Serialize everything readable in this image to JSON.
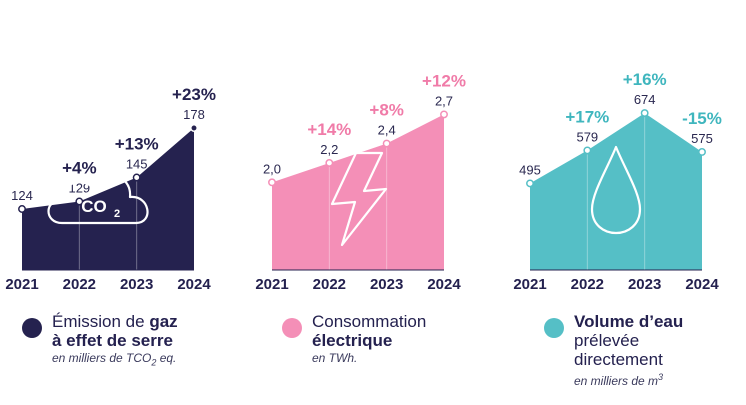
{
  "chart_data": [
    {
      "type": "area",
      "x": [
        "2021",
        "2022",
        "2023",
        "2024"
      ],
      "values": [
        124,
        129,
        145,
        178
      ],
      "value_labels": [
        "124",
        "129",
        "145",
        "178"
      ],
      "changes": [
        "",
        "+4%",
        "+13%",
        "+23%"
      ],
      "color": "#25224f",
      "change_color": "#25224f",
      "icon": "co2-cloud-icon",
      "icon_text": "CO2",
      "legend": {
        "pre": "Émission de ",
        "bold1": "gaz",
        "bold2": "à effet de serre",
        "unit_pre": "en milliers de TCO",
        "unit_sub": "2",
        "unit_post": " eq."
      }
    },
    {
      "type": "area",
      "x": [
        "2021",
        "2022",
        "2023",
        "2024"
      ],
      "values": [
        2.0,
        2.2,
        2.4,
        2.7
      ],
      "value_labels": [
        "2,0",
        "2,2",
        "2,4",
        "2,7"
      ],
      "changes": [
        "",
        "+14%",
        "+8%",
        "+12%"
      ],
      "color": "#f48fb7",
      "change_color": "#f07ba8",
      "icon": "lightning-bolt-icon",
      "legend": {
        "line1": "Consommation",
        "line2": "électrique",
        "unit": "en TWh."
      }
    },
    {
      "type": "area",
      "x": [
        "2021",
        "2022",
        "2023",
        "2024"
      ],
      "values": [
        495,
        579,
        674,
        575
      ],
      "value_labels": [
        "495",
        "579",
        "674",
        "575"
      ],
      "changes": [
        "",
        "+17%",
        "+16%",
        "-15%"
      ],
      "color": "#55bfc6",
      "change_color": "#3fb6be",
      "icon": "water-drop-icon",
      "legend": {
        "line1": "Volume d’eau",
        "line2": "prélevée",
        "line3": "directement",
        "unit_pre": "en milliers de m",
        "unit_sup": "3"
      }
    }
  ]
}
